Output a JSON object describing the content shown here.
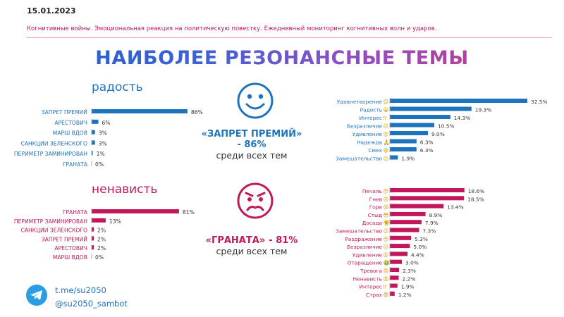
{
  "header": {
    "date": "15.01.2023",
    "subtitle": "Когнитивные войны. Эмоциональная реакция на политическую повестку. Ежедневный мониторинг когнитивных волн и ударов.",
    "title": "НАИБОЛЕЕ РЕЗОНАНСНЫЕ ТЕМЫ"
  },
  "joy": {
    "heading": "радость",
    "top_topic": "«ЗАПРЕТ ПРЕМИЙ»",
    "top_pct": "- 86%",
    "top_sub": "среди всех тем"
  },
  "hate": {
    "heading": "ненависть",
    "top_topic": "«ГРАНАТА»",
    "top_pct": "- 81%",
    "top_sub": "среди всех тем"
  },
  "footer": {
    "telegram_link": "t.me/su2050",
    "bot": "@su2050_sambot"
  },
  "colors": {
    "blue": "#1e73be",
    "pink": "#c2185b"
  },
  "icons": {
    "joy": "smiley-face-icon",
    "hate": "angry-face-icon",
    "telegram": "telegram-icon"
  },
  "chart_data": [
    {
      "id": "joy-topics",
      "type": "bar",
      "orientation": "horizontal",
      "categories": [
        "ЗАПРЕТ ПРЕМИЙ",
        "АРЕСТОВИЧ",
        "МАРШ ВДОВ",
        "САНКЦИИ ЗЕЛЕНСКОГО",
        "ПЕРИМЕТР ЗАМИНИРОВАН",
        "ГРАНАТА"
      ],
      "values": [
        86,
        6,
        3,
        3,
        1,
        0
      ],
      "labels": [
        "86%",
        "6%",
        "3%",
        "3%",
        "1%",
        "0%"
      ],
      "xlim": [
        0,
        100
      ],
      "color": "#1e73be"
    },
    {
      "id": "hate-topics",
      "type": "bar",
      "orientation": "horizontal",
      "categories": [
        "ГРАНАТА",
        "ПЕРИМЕТР ЗАМИНИРОВАН",
        "САНКЦИИ ЗЕЛЕНСКОГО",
        "ЗАПРЕТ ПРЕМИЙ",
        "АРЕСТОВИЧ",
        "МАРШ ВДОВ"
      ],
      "values": [
        81,
        13,
        2,
        2,
        2,
        0
      ],
      "labels": [
        "81%",
        "13%",
        "2%",
        "2%",
        "2%",
        "0%"
      ],
      "xlim": [
        0,
        100
      ],
      "color": "#c2185b"
    },
    {
      "id": "positive-emotions",
      "type": "bar",
      "orientation": "horizontal",
      "categories": [
        "Удовлетворение",
        "Радость",
        "Интерес",
        "Безразличие",
        "Удивление",
        "Надежда",
        "Смех",
        "Замешательство"
      ],
      "values": [
        32.5,
        19.3,
        14.3,
        10.5,
        9.0,
        6.3,
        6.3,
        1.9
      ],
      "labels": [
        "32.5%",
        "19.3%",
        "14.3%",
        "10.5%",
        "9.0%",
        "6.3%",
        "6.3%",
        "1.9%"
      ],
      "emoji": [
        "😊",
        "😀",
        "⁉",
        "😐",
        "😮",
        "🙏",
        "😆",
        "😕"
      ],
      "xlim": [
        0,
        33
      ],
      "color": "#1e73be"
    },
    {
      "id": "negative-emotions",
      "type": "bar",
      "orientation": "horizontal",
      "categories": [
        "Печаль",
        "Гнев",
        "Горе",
        "Стыд",
        "Досада",
        "Замешательство",
        "Раздражение",
        "Безразличие",
        "Удивление",
        "Отвращение",
        "Тревога",
        "Ненависть",
        "Интерес",
        "Страх"
      ],
      "values": [
        18.6,
        18.5,
        13.4,
        8.9,
        7.9,
        7.3,
        5.3,
        5.0,
        4.4,
        3.0,
        2.3,
        2.2,
        1.9,
        1.2
      ],
      "labels": [
        "18.6%",
        "18.5%",
        "13.4%",
        "8.9%",
        "7.9%",
        "7.3%",
        "5.3%",
        "5.0%",
        "4.4%",
        "3.0%",
        "2.3%",
        "2.2%",
        "1.9%",
        "1.2%"
      ],
      "emoji": [
        "😔",
        "😠",
        "😢",
        "😳",
        "😤",
        "😕",
        "😒",
        "😐",
        "😮",
        "🤢",
        "😟",
        "😡",
        "⁉",
        "😨"
      ],
      "xlim": [
        0,
        19
      ],
      "color": "#c2185b"
    }
  ]
}
